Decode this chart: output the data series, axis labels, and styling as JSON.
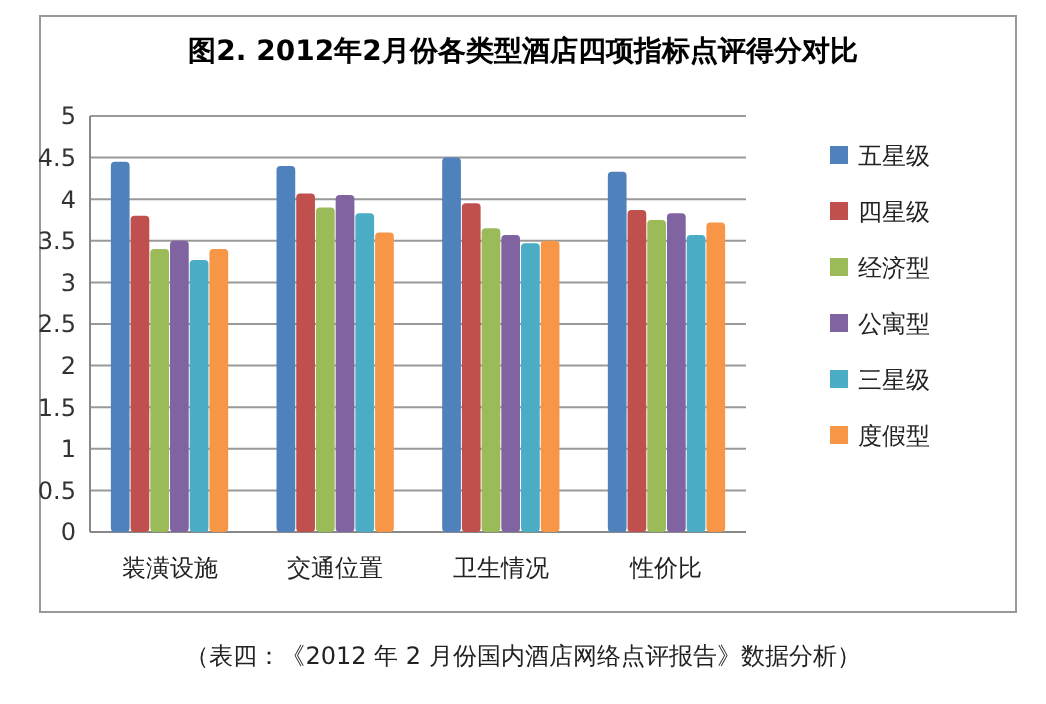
{
  "chart_data": {
    "type": "bar",
    "title": "图2. 2012年2月份各类型酒店四项指标点评得分对比",
    "categories": [
      "装潢设施",
      "交通位置",
      "卫生情况",
      "性价比"
    ],
    "series": [
      {
        "name": "五星级",
        "color": "#4f81bd",
        "values": [
          4.45,
          4.4,
          4.5,
          4.33
        ]
      },
      {
        "name": "四星级",
        "color": "#c0504d",
        "values": [
          3.8,
          4.07,
          3.95,
          3.87
        ]
      },
      {
        "name": "经济型",
        "color": "#9bbb59",
        "values": [
          3.4,
          3.9,
          3.65,
          3.75
        ]
      },
      {
        "name": "公寓型",
        "color": "#8064a2",
        "values": [
          3.5,
          4.05,
          3.57,
          3.83
        ]
      },
      {
        "name": "三星级",
        "color": "#4bacc6",
        "values": [
          3.27,
          3.83,
          3.47,
          3.57
        ]
      },
      {
        "name": "度假型",
        "color": "#f79646",
        "values": [
          3.4,
          3.6,
          3.5,
          3.72
        ]
      }
    ],
    "ylim": [
      0,
      5
    ],
    "yticks": [
      0,
      0.5,
      1,
      1.5,
      2,
      2.5,
      3,
      3.5,
      4,
      4.5,
      5
    ],
    "grid": "y",
    "legend": "right",
    "annotations": [
      "（表四：《2012 年 2 月份国内酒店网络点评报告》数据分析）"
    ]
  }
}
